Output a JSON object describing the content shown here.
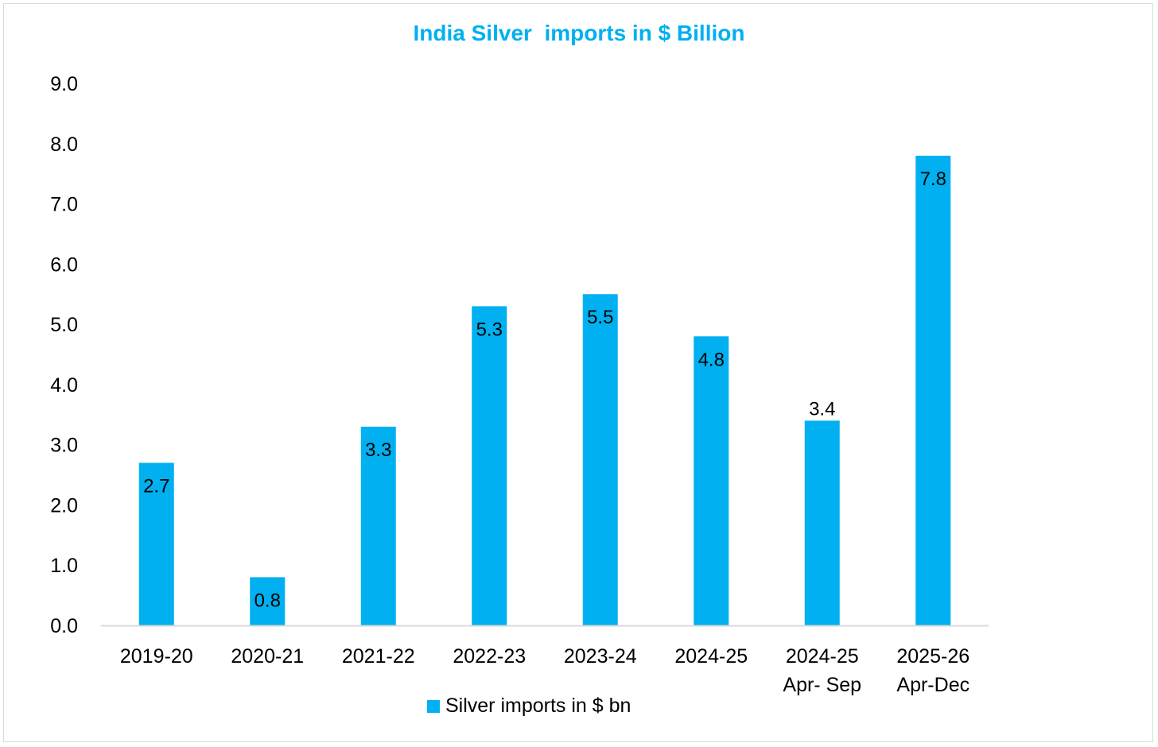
{
  "chart_data": {
    "type": "bar",
    "title": "India Silver  imports in $ Billion",
    "xlabel": "",
    "ylabel": "",
    "ylim": [
      0,
      9
    ],
    "ytick_step": 1,
    "ytick_labels": [
      "0.0",
      "1.0",
      "2.0",
      "3.0",
      "4.0",
      "5.0",
      "6.0",
      "7.0",
      "8.0",
      "9.0"
    ],
    "grid": false,
    "categories": [
      [
        "2019-20"
      ],
      [
        "2020-21"
      ],
      [
        "2021-22"
      ],
      [
        "2022-23"
      ],
      [
        "2023-24"
      ],
      [
        "2024-25"
      ],
      [
        "2024-25",
        "Apr- Sep"
      ],
      [
        "2025-26",
        "Apr-Dec"
      ]
    ],
    "series": [
      {
        "name": "Silver imports in $ bn",
        "values": [
          2.7,
          0.8,
          3.3,
          5.3,
          5.5,
          4.8,
          3.4,
          7.8
        ],
        "labels": [
          "2.7",
          "0.8",
          "3.3",
          "5.3",
          "5.5",
          "4.8",
          "3.4",
          "7.8"
        ],
        "label_position": [
          "inside",
          "inside",
          "inside",
          "inside",
          "inside",
          "inside",
          "above",
          "inside"
        ]
      }
    ],
    "legend_position": "bottom-center",
    "colors": {
      "bar": "#00b0f0",
      "title": "#00b0f0",
      "axis": "#d9d9d9",
      "text": "#000000"
    }
  }
}
